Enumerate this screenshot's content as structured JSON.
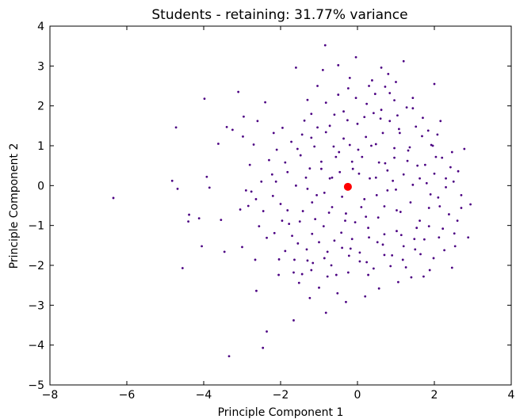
{
  "chart_data": {
    "type": "scatter",
    "title": "Students - retaining: 31.77% variance",
    "xlabel": "Principle Component 1",
    "ylabel": "Principle Component 2",
    "xlim": [
      -8,
      4
    ],
    "ylim": [
      -5,
      4
    ],
    "grid": false,
    "xticks": [
      -8,
      -6,
      -4,
      -2,
      0,
      2,
      4
    ],
    "yticks": [
      -5,
      -4,
      -3,
      -2,
      -1,
      0,
      1,
      2,
      3,
      4
    ],
    "xtick_labels": [
      "−8",
      "−6",
      "−4",
      "−2",
      "0",
      "2",
      "4"
    ],
    "ytick_labels": [
      "−5",
      "−4",
      "−3",
      "−2",
      "−1",
      "0",
      "1",
      "2",
      "3",
      "4"
    ],
    "series": [
      {
        "color": "#4b0082",
        "points": [
          [
            -6.35,
            -0.31
          ],
          [
            -4.82,
            0.12
          ],
          [
            -4.68,
            -0.08
          ],
          [
            -4.72,
            1.46
          ],
          [
            -4.55,
            -2.07
          ],
          [
            -4.38,
            -0.73
          ],
          [
            -4.4,
            -0.9
          ],
          [
            -4.12,
            -0.82
          ],
          [
            -4.05,
            -1.52
          ],
          [
            -3.98,
            2.18
          ],
          [
            -3.92,
            0.22
          ],
          [
            -3.85,
            -0.05
          ],
          [
            -3.62,
            1.05
          ],
          [
            -3.55,
            -0.86
          ],
          [
            -3.4,
            1.47
          ],
          [
            -3.25,
            1.4
          ],
          [
            -3.1,
            2.35
          ],
          [
            -3.05,
            -0.6
          ],
          [
            -2.98,
            1.23
          ],
          [
            -2.96,
            1.73
          ],
          [
            -2.9,
            -0.12
          ],
          [
            -2.84,
            -0.51
          ],
          [
            -2.8,
            0.52
          ],
          [
            -2.76,
            -0.15
          ],
          [
            -2.7,
            1.03
          ],
          [
            -2.64,
            -0.34
          ],
          [
            -2.6,
            1.62
          ],
          [
            -2.56,
            -1.02
          ],
          [
            -2.5,
            0.1
          ],
          [
            -2.45,
            -0.64
          ],
          [
            -2.4,
            2.09
          ],
          [
            -2.36,
            -1.31
          ],
          [
            -2.3,
            0.64
          ],
          [
            -2.22,
            0.28
          ],
          [
            -2.16,
            -1.19
          ],
          [
            -2.1,
            0.9
          ],
          [
            -2.05,
            -2.24
          ],
          [
            -2.0,
            -0.46
          ],
          [
            -1.95,
            1.45
          ],
          [
            -1.88,
            -1.64
          ],
          [
            -1.82,
            0.34
          ],
          [
            -1.78,
            -0.96
          ],
          [
            -1.72,
            1.1
          ],
          [
            -1.66,
            -2.18
          ],
          [
            -1.6,
            0.0
          ],
          [
            -1.55,
            -1.45
          ],
          [
            -1.48,
            0.76
          ],
          [
            -1.42,
            -0.64
          ],
          [
            -1.38,
            1.63
          ],
          [
            -1.3,
            -1.88
          ],
          [
            -1.24,
            0.43
          ],
          [
            -1.18,
            -1.21
          ],
          [
            -1.12,
            0.98
          ],
          [
            -1.06,
            -0.24
          ],
          [
            -1.0,
            -2.56
          ],
          [
            -0.94,
            0.6
          ],
          [
            -0.88,
            -1.02
          ],
          [
            -0.82,
            1.34
          ],
          [
            -0.78,
            -1.66
          ],
          [
            -0.72,
            0.18
          ],
          [
            -0.66,
            -0.54
          ],
          [
            -0.6,
            1.78
          ],
          [
            -0.55,
            -2.24
          ],
          [
            -0.48,
            0.84
          ],
          [
            -0.42,
            -1.18
          ],
          [
            -0.36,
            1.18
          ],
          [
            -0.3,
            -0.7
          ],
          [
            -0.24,
            2.44
          ],
          [
            -0.18,
            -1.58
          ],
          [
            -0.12,
            0.42
          ],
          [
            -0.06,
            -0.92
          ],
          [
            0.0,
            1.55
          ],
          [
            0.06,
            -1.9
          ],
          [
            0.12,
            0.72
          ],
          [
            0.18,
            -0.34
          ],
          [
            0.24,
            2.05
          ],
          [
            0.3,
            -1.3
          ],
          [
            0.36,
            1.0
          ],
          [
            0.42,
            -2.08
          ],
          [
            0.48,
            0.2
          ],
          [
            0.54,
            -0.8
          ],
          [
            0.6,
            1.68
          ],
          [
            0.66,
            -1.48
          ],
          [
            0.72,
            0.56
          ],
          [
            0.78,
            -0.12
          ],
          [
            0.84,
            2.32
          ],
          [
            0.9,
            -1.75
          ],
          [
            0.96,
            0.94
          ],
          [
            1.02,
            -0.62
          ],
          [
            1.08,
            1.42
          ],
          [
            1.14,
            -1.24
          ],
          [
            1.2,
            0.28
          ],
          [
            1.26,
            -2.05
          ],
          [
            1.32,
            0.88
          ],
          [
            1.38,
            -0.42
          ],
          [
            1.44,
            1.94
          ],
          [
            1.5,
            -1.6
          ],
          [
            1.56,
            0.5
          ],
          [
            1.62,
            -0.88
          ],
          [
            1.68,
            1.24
          ],
          [
            1.74,
            -1.35
          ],
          [
            1.8,
            0.06
          ],
          [
            1.86,
            -0.56
          ],
          [
            1.92,
            1.02
          ],
          [
            1.98,
            -1.82
          ],
          [
            2.04,
            0.72
          ],
          [
            2.1,
            -0.3
          ],
          [
            2.16,
            1.62
          ],
          [
            2.22,
            -1.08
          ],
          [
            2.3,
            0.18
          ],
          [
            2.38,
            -0.72
          ],
          [
            2.46,
            0.84
          ],
          [
            2.54,
            -1.52
          ],
          [
            2.62,
            0.36
          ],
          [
            2.7,
            -0.24
          ],
          [
            2.78,
            0.92
          ],
          [
            2.88,
            -1.3
          ],
          [
            2.94,
            -0.47
          ],
          [
            -1.66,
            -3.38
          ],
          [
            -2.36,
            -3.66
          ],
          [
            -2.46,
            -4.07
          ],
          [
            -3.34,
            -4.28
          ],
          [
            -2.63,
            -2.64
          ],
          [
            -0.82,
            -3.19
          ],
          [
            -1.24,
            -2.82
          ],
          [
            -0.3,
            -2.92
          ],
          [
            0.2,
            -2.78
          ],
          [
            -0.04,
            3.22
          ],
          [
            -0.84,
            3.52
          ],
          [
            -0.5,
            3.02
          ],
          [
            -1.6,
            2.96
          ],
          [
            1.2,
            3.12
          ],
          [
            0.62,
            2.96
          ],
          [
            2.0,
            2.55
          ],
          [
            0.38,
            2.64
          ],
          [
            -0.9,
            2.9
          ],
          [
            1.44,
            2.2
          ],
          [
            -1.3,
            2.15
          ],
          [
            -2.18,
            1.32
          ],
          [
            -1.04,
            2.5
          ],
          [
            0.72,
            2.48
          ],
          [
            1.84,
            1.38
          ],
          [
            2.3,
            -0.04
          ],
          [
            2.46,
            -2.06
          ],
          [
            1.72,
            -2.28
          ],
          [
            1.06,
            -2.42
          ],
          [
            0.56,
            -2.58
          ],
          [
            -0.52,
            -2.7
          ],
          [
            -1.52,
            -2.44
          ],
          [
            -2.04,
            -1.85
          ],
          [
            -2.66,
            -1.86
          ],
          [
            -3.0,
            -1.54
          ],
          [
            -3.46,
            -1.66
          ],
          [
            -0.18,
            -0.05
          ],
          [
            -0.66,
            0.2
          ],
          [
            -0.14,
            0.6
          ],
          [
            0.32,
            0.18
          ],
          [
            0.5,
            -0.24
          ],
          [
            0.1,
            -0.54
          ],
          [
            -0.4,
            -0.28
          ],
          [
            -0.86,
            -0.18
          ],
          [
            -1.34,
            0.2
          ],
          [
            -1.18,
            -0.42
          ],
          [
            0.78,
            0.38
          ],
          [
            1.0,
            -0.1
          ],
          [
            1.3,
            0.62
          ],
          [
            1.62,
            0.18
          ],
          [
            1.9,
            -0.22
          ],
          [
            0.22,
            1.22
          ],
          [
            -0.2,
            1.02
          ],
          [
            -0.62,
            0.98
          ],
          [
            0.66,
            1.32
          ],
          [
            1.04,
            1.76
          ],
          [
            -1.04,
            1.46
          ],
          [
            -1.44,
            1.28
          ],
          [
            0.28,
            -1.06
          ],
          [
            -0.14,
            -1.34
          ],
          [
            -0.6,
            -1.38
          ],
          [
            0.7,
            -1.22
          ],
          [
            1.2,
            -1.52
          ],
          [
            1.54,
            -1.06
          ],
          [
            -1.0,
            -1.42
          ],
          [
            -1.5,
            -0.9
          ],
          [
            -1.82,
            -0.62
          ],
          [
            -2.2,
            -0.26
          ],
          [
            -0.36,
            1.86
          ],
          [
            0.42,
            1.82
          ],
          [
            0.84,
            1.62
          ],
          [
            -0.82,
            2.08
          ],
          [
            1.28,
            1.96
          ],
          [
            1.7,
            1.7
          ],
          [
            2.08,
            1.28
          ],
          [
            2.42,
            0.46
          ],
          [
            2.6,
            -0.88
          ],
          [
            2.26,
            -1.62
          ],
          [
            1.88,
            -2.12
          ],
          [
            1.4,
            -2.3
          ],
          [
            0.86,
            -2.02
          ],
          [
            0.28,
            -2.24
          ],
          [
            -0.24,
            -2.18
          ],
          [
            -0.78,
            -2.28
          ],
          [
            -1.2,
            -2.12
          ],
          [
            -1.64,
            -1.86
          ],
          [
            -0.46,
            0.34
          ],
          [
            0.04,
            0.3
          ],
          [
            0.56,
            0.58
          ],
          [
            0.92,
            0.12
          ],
          [
            1.44,
            0.02
          ],
          [
            1.12,
            -0.66
          ],
          [
            0.7,
            -0.52
          ],
          [
            0.22,
            -0.78
          ],
          [
            -0.32,
            -0.88
          ],
          [
            -0.74,
            -0.68
          ],
          [
            -1.1,
            -0.84
          ],
          [
            -1.3,
            -0.08
          ],
          [
            -0.94,
            0.42
          ],
          [
            -0.56,
            0.72
          ],
          [
            0.02,
            0.9
          ],
          [
            0.48,
            1.04
          ],
          [
            0.96,
            0.7
          ],
          [
            1.36,
            0.96
          ],
          [
            1.76,
            0.52
          ],
          [
            2.0,
            0.3
          ],
          [
            2.14,
            -0.52
          ],
          [
            1.86,
            -1.02
          ],
          [
            1.48,
            -1.34
          ],
          [
            1.02,
            -1.14
          ],
          [
            0.52,
            -1.42
          ],
          [
            0.06,
            -1.68
          ],
          [
            -0.4,
            -1.56
          ],
          [
            -0.86,
            -1.82
          ],
          [
            -1.32,
            -1.6
          ],
          [
            -1.7,
            -1.26
          ],
          [
            -1.96,
            -0.88
          ],
          [
            -2.12,
            0.1
          ],
          [
            -1.88,
            0.58
          ],
          [
            -1.56,
            0.92
          ],
          [
            -1.2,
            1.2
          ],
          [
            -0.72,
            1.5
          ],
          [
            -0.26,
            1.64
          ],
          [
            0.18,
            1.72
          ],
          [
            0.62,
            1.9
          ],
          [
            1.1,
            1.32
          ],
          [
            1.52,
            1.48
          ],
          [
            1.96,
            1.0
          ],
          [
            2.2,
            0.7
          ],
          [
            2.5,
            0.1
          ],
          [
            2.7,
            -0.56
          ],
          [
            2.52,
            -1.2
          ],
          [
            2.12,
            -1.3
          ],
          [
            1.64,
            -1.72
          ],
          [
            1.18,
            -1.86
          ],
          [
            0.7,
            -1.74
          ],
          [
            0.24,
            -1.92
          ],
          [
            -0.22,
            -1.76
          ],
          [
            -0.68,
            -2.0
          ],
          [
            -1.16,
            -1.94
          ],
          [
            -1.44,
            -2.22
          ],
          [
            -0.04,
            2.2
          ],
          [
            0.46,
            2.3
          ],
          [
            0.96,
            2.14
          ],
          [
            -0.5,
            2.28
          ],
          [
            -1.2,
            1.8
          ],
          [
            0.8,
            2.8
          ],
          [
            1.0,
            2.6
          ],
          [
            -0.2,
            2.7
          ],
          [
            0.3,
            2.5
          ]
        ]
      },
      {
        "color": "#ff0000",
        "points": [
          [
            -0.25,
            -0.03
          ]
        ]
      }
    ]
  }
}
